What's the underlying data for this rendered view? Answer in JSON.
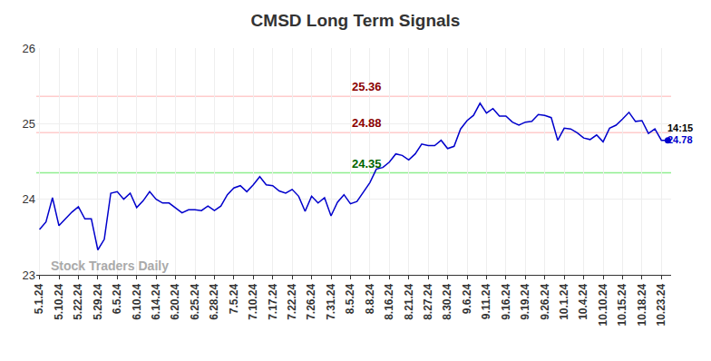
{
  "chart_data": {
    "type": "line",
    "title": "CMSD Long Term Signals",
    "categories": [
      "5.1.24",
      null,
      null,
      "5.10.24",
      null,
      null,
      "5.22.24",
      null,
      null,
      "5.29.24",
      null,
      null,
      "6.5.24",
      null,
      null,
      "6.10.24",
      null,
      null,
      "6.14.24",
      null,
      null,
      "6.20.24",
      null,
      null,
      "6.25.24",
      null,
      null,
      "6.28.24",
      null,
      null,
      "7.5.24",
      null,
      null,
      "7.10.24",
      null,
      null,
      "7.17.24",
      null,
      null,
      "7.22.24",
      null,
      null,
      "7.26.24",
      null,
      null,
      "7.31.24",
      null,
      null,
      "8.5.24",
      null,
      null,
      "8.8.24",
      null,
      null,
      "8.16.24",
      null,
      null,
      "8.21.24",
      null,
      null,
      "8.27.24",
      null,
      null,
      "8.30.24",
      null,
      null,
      "9.6.24",
      null,
      null,
      "9.11.24",
      null,
      null,
      "9.16.24",
      null,
      null,
      "9.19.24",
      null,
      null,
      "9.26.24",
      null,
      null,
      "10.1.24",
      null,
      null,
      "10.4.24",
      null,
      null,
      "10.10.24",
      null,
      null,
      "10.15.24",
      null,
      null,
      "10.18.24",
      null,
      null,
      "10.23.24",
      null
    ],
    "values": [
      23.6,
      23.7,
      24.02,
      23.65,
      23.74,
      23.83,
      23.9,
      23.74,
      23.74,
      23.33,
      23.47,
      24.08,
      24.1,
      24.0,
      24.08,
      23.89,
      23.98,
      24.1,
      24.0,
      23.95,
      23.95,
      23.89,
      23.82,
      23.86,
      23.86,
      23.85,
      23.91,
      23.85,
      23.91,
      24.06,
      24.15,
      24.18,
      24.1,
      24.19,
      24.3,
      24.19,
      24.18,
      24.11,
      24.08,
      24.13,
      24.04,
      23.84,
      24.04,
      23.95,
      24.02,
      23.78,
      23.96,
      24.06,
      23.94,
      23.97,
      24.1,
      24.22,
      24.4,
      24.42,
      24.49,
      24.6,
      24.58,
      24.52,
      24.6,
      24.73,
      24.71,
      24.71,
      24.78,
      24.67,
      24.7,
      24.93,
      25.04,
      25.11,
      25.27,
      25.14,
      25.2,
      25.1,
      25.1,
      25.02,
      24.98,
      25.02,
      25.03,
      25.12,
      25.11,
      25.08,
      24.78,
      24.94,
      24.93,
      24.88,
      24.81,
      24.79,
      24.85,
      24.76,
      24.94,
      24.98,
      25.06,
      25.15,
      25.03,
      25.04,
      24.87,
      24.93,
      24.78,
      24.78
    ],
    "color": "#0000cc",
    "ylim": [
      23,
      26
    ],
    "yticks": [
      23,
      24,
      25,
      26
    ],
    "grid": true,
    "reference_lines": [
      {
        "value": 25.36,
        "color": "#ffcccc",
        "label_color": "#8b0000"
      },
      {
        "value": 24.88,
        "color": "#ffcccc",
        "label_color": "#8b0000"
      },
      {
        "value": 24.35,
        "color": "#90ee90",
        "label_color": "#006400"
      }
    ],
    "last_point_time": "14:15",
    "watermark": "Stock Traders Daily"
  }
}
